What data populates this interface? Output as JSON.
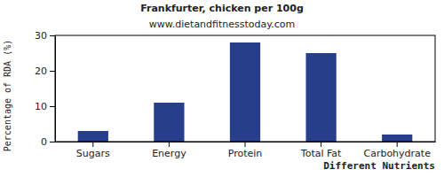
{
  "chart_data": {
    "type": "bar",
    "title": "Frankfurter, chicken per 100g",
    "subtitle": "www.dietandfitnesstoday.com",
    "x_label": "Different Nutrients",
    "y_label": "Percentage of RDA (%)",
    "categories": [
      "Sugars",
      "Energy",
      "Protein",
      "Total Fat",
      "Carbohydrate"
    ],
    "values": [
      3,
      11,
      28,
      25,
      2
    ],
    "color": "#263e8c",
    "ylim": [
      0,
      30
    ],
    "yticks": [
      0,
      10,
      20,
      30
    ],
    "grid": false
  }
}
